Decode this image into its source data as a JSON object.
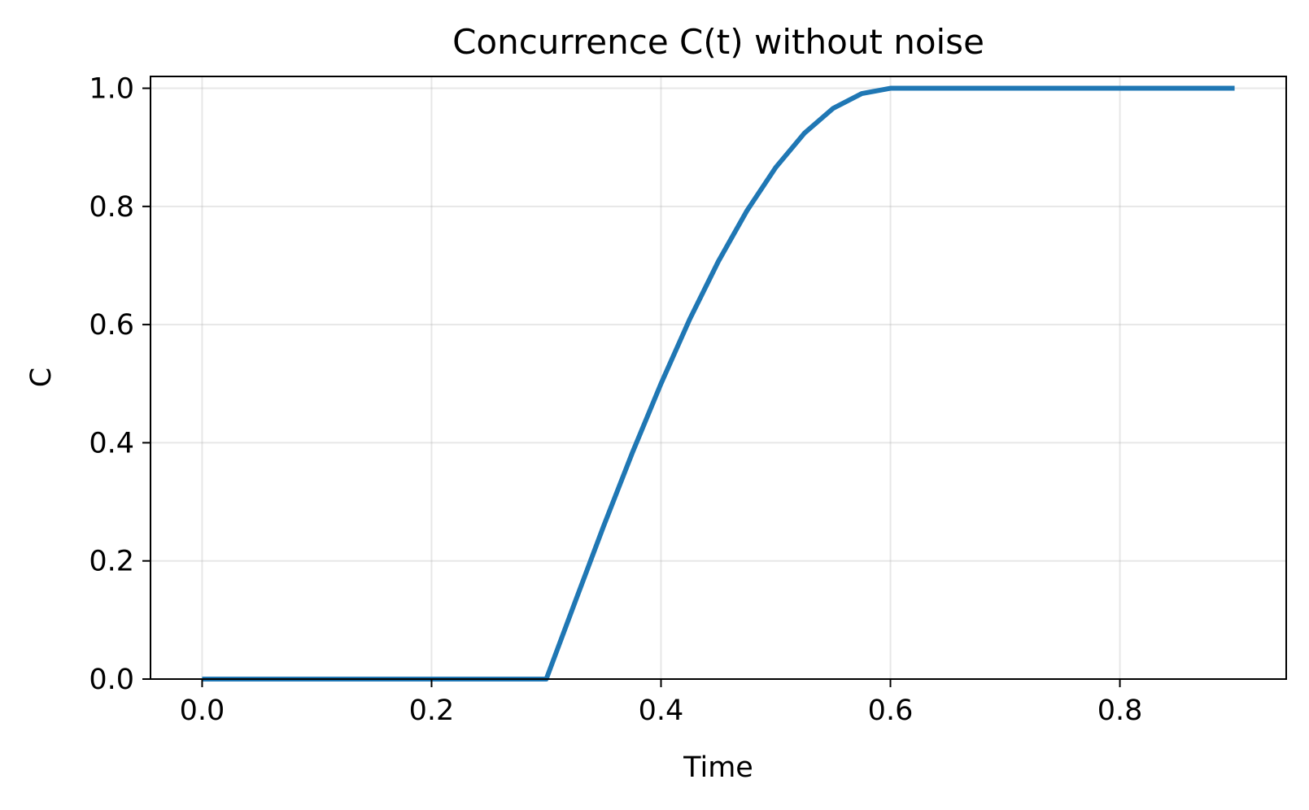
{
  "chart_data": {
    "type": "line",
    "title": "Concurrence C(t) without noise",
    "xlabel": "Time",
    "ylabel": "C",
    "xlim": [
      -0.045,
      0.945
    ],
    "ylim": [
      0.0,
      1.02
    ],
    "xticks": [
      0.0,
      0.2,
      0.4,
      0.6,
      0.8
    ],
    "xtick_labels": [
      "0.0",
      "0.2",
      "0.4",
      "0.6",
      "0.8"
    ],
    "yticks": [
      0.0,
      0.2,
      0.4,
      0.6,
      0.8,
      1.0
    ],
    "ytick_labels": [
      "0.0",
      "0.2",
      "0.4",
      "0.6",
      "0.8",
      "1.0"
    ],
    "grid": true,
    "series": [
      {
        "color": "#1f77b4",
        "x": [
          0.0,
          0.05,
          0.1,
          0.15,
          0.2,
          0.25,
          0.3,
          0.325,
          0.35,
          0.375,
          0.4,
          0.425,
          0.45,
          0.475,
          0.5,
          0.525,
          0.55,
          0.575,
          0.6,
          0.65,
          0.7,
          0.75,
          0.8,
          0.85,
          0.9
        ],
        "y": [
          0.0,
          0.0,
          0.0,
          0.0,
          0.0,
          0.0,
          0.0,
          0.13,
          0.259,
          0.383,
          0.5,
          0.609,
          0.707,
          0.793,
          0.866,
          0.924,
          0.966,
          0.991,
          1.0,
          1.0,
          1.0,
          1.0,
          1.0,
          1.0,
          1.0
        ]
      }
    ]
  }
}
